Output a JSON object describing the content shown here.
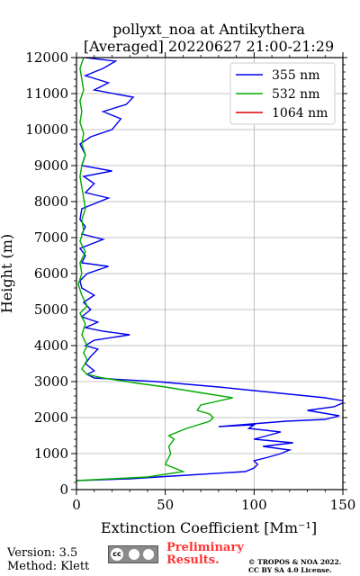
{
  "chart_data": {
    "type": "line",
    "title_line1": "pollyxt_noa at Antikythera",
    "title_line2": "[Averaged] 20220627 21:00-21:29",
    "xlabel": "Extinction Coefficient [Mm⁻¹]",
    "ylabel": "Height (m)",
    "xlim": [
      0,
      150
    ],
    "ylim": [
      0,
      12000
    ],
    "xticks": [
      "0",
      "50",
      "100",
      "150"
    ],
    "yticks": [
      "0",
      "1000",
      "2000",
      "3000",
      "4000",
      "5000",
      "6000",
      "7000",
      "8000",
      "9000",
      "10000",
      "11000",
      "12000"
    ],
    "grid": true,
    "legend_position": "top-right",
    "series": [
      {
        "name": "355 nm",
        "color": "#0000ee",
        "points": [
          [
            0,
            250
          ],
          [
            30,
            300
          ],
          [
            62,
            400
          ],
          [
            95,
            500
          ],
          [
            100,
            600
          ],
          [
            102,
            700
          ],
          [
            100,
            800
          ],
          [
            108,
            900
          ],
          [
            115,
            1000
          ],
          [
            120,
            1100
          ],
          [
            105,
            1200
          ],
          [
            122,
            1300
          ],
          [
            100,
            1400
          ],
          [
            115,
            1600
          ],
          [
            97,
            1700
          ],
          [
            100,
            1800
          ],
          [
            80,
            1750
          ],
          [
            118,
            1900
          ],
          [
            140,
            1950
          ],
          [
            148,
            2050
          ],
          [
            130,
            2200
          ],
          [
            145,
            2300
          ],
          [
            152,
            2450
          ],
          [
            140,
            2550
          ],
          [
            120,
            2650
          ],
          [
            80,
            2850
          ],
          [
            45,
            3000
          ],
          [
            10,
            3100
          ],
          [
            6,
            3200
          ],
          [
            10,
            3300
          ],
          [
            5,
            3500
          ],
          [
            8,
            3700
          ],
          [
            12,
            3900
          ],
          [
            5,
            4000
          ],
          [
            10,
            4150
          ],
          [
            30,
            4300
          ],
          [
            15,
            4400
          ],
          [
            5,
            4500
          ],
          [
            12,
            4650
          ],
          [
            3,
            4800
          ],
          [
            8,
            5000
          ],
          [
            4,
            5200
          ],
          [
            10,
            5400
          ],
          [
            3,
            5600
          ],
          [
            2,
            5800
          ],
          [
            6,
            6000
          ],
          [
            18,
            6200
          ],
          [
            3,
            6300
          ],
          [
            5,
            6500
          ],
          [
            2,
            6700
          ],
          [
            15,
            6950
          ],
          [
            3,
            7100
          ],
          [
            5,
            7300
          ],
          [
            2,
            7500
          ],
          [
            3,
            7800
          ],
          [
            18,
            8100
          ],
          [
            5,
            8250
          ],
          [
            10,
            8500
          ],
          [
            4,
            8700
          ],
          [
            20,
            8850
          ],
          [
            3,
            9000
          ],
          [
            5,
            9300
          ],
          [
            2,
            9600
          ],
          [
            8,
            9800
          ],
          [
            20,
            10000
          ],
          [
            25,
            10300
          ],
          [
            15,
            10500
          ],
          [
            28,
            10700
          ],
          [
            32,
            10900
          ],
          [
            10,
            11100
          ],
          [
            18,
            11300
          ],
          [
            5,
            11500
          ],
          [
            15,
            11700
          ],
          [
            22,
            11900
          ],
          [
            5,
            12000
          ]
        ]
      },
      {
        "name": "532 nm",
        "color": "#00aa00",
        "points": [
          [
            0,
            250
          ],
          [
            20,
            300
          ],
          [
            40,
            350
          ],
          [
            60,
            500
          ],
          [
            55,
            600
          ],
          [
            50,
            700
          ],
          [
            52,
            900
          ],
          [
            53,
            1000
          ],
          [
            52,
            1200
          ],
          [
            55,
            1400
          ],
          [
            52,
            1500
          ],
          [
            62,
            1700
          ],
          [
            75,
            1900
          ],
          [
            77,
            2000
          ],
          [
            75,
            2100
          ],
          [
            68,
            2200
          ],
          [
            70,
            2350
          ],
          [
            88,
            2550
          ],
          [
            75,
            2650
          ],
          [
            50,
            2850
          ],
          [
            35,
            2950
          ],
          [
            15,
            3100
          ],
          [
            6,
            3200
          ],
          [
            3,
            3350
          ],
          [
            6,
            3600
          ],
          [
            4,
            3800
          ],
          [
            6,
            4000
          ],
          [
            3,
            4300
          ],
          [
            5,
            4600
          ],
          [
            2,
            4900
          ],
          [
            6,
            5100
          ],
          [
            3,
            5400
          ],
          [
            1,
            5700
          ],
          [
            3,
            6000
          ],
          [
            2,
            6300
          ],
          [
            5,
            6600
          ],
          [
            2,
            6900
          ],
          [
            4,
            7200
          ],
          [
            3,
            7500
          ],
          [
            5,
            7800
          ],
          [
            4,
            8100
          ],
          [
            3,
            8400
          ],
          [
            2,
            8700
          ],
          [
            3,
            9000
          ],
          [
            5,
            9300
          ],
          [
            3,
            9600
          ],
          [
            4,
            9900
          ],
          [
            2,
            10200
          ],
          [
            3,
            10500
          ],
          [
            2,
            10800
          ],
          [
            4,
            11100
          ],
          [
            3,
            11400
          ],
          [
            2,
            11700
          ],
          [
            4,
            12000
          ]
        ]
      },
      {
        "name": "1064 nm",
        "color": "#dd0000",
        "points": []
      }
    ]
  },
  "footer": {
    "version": "Version: 3.5",
    "method": "Method: Klett",
    "prelim_line1": "Preliminary",
    "prelim_line2": "Results.",
    "copyright_line1": "© TROPOS & NOA 2022.",
    "copyright_line2": "CC BY SA 4.0 License.",
    "license_badge": "cc"
  }
}
